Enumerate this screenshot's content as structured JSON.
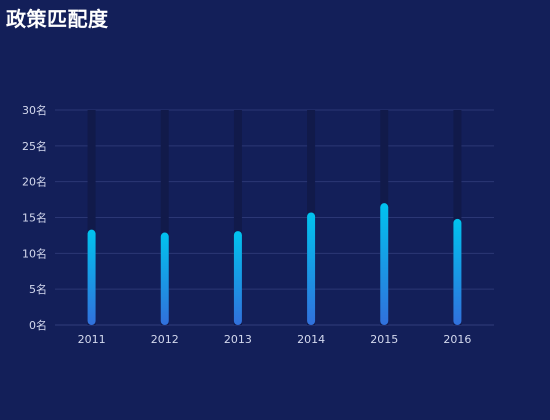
{
  "panel": {
    "title": "政策匹配度"
  },
  "colors": {
    "background": "#131f59",
    "track": "#111a4a",
    "bar_top": "#00c3ee",
    "bar_bottom": "#3170dc",
    "grid": "#2b3775",
    "axis_text": "#d4d9ee"
  },
  "chart_data": {
    "type": "bar",
    "categories": [
      "2011",
      "2012",
      "2013",
      "2014",
      "2015",
      "2016"
    ],
    "values": [
      13.3,
      12.9,
      13.1,
      15.7,
      17.0,
      14.8
    ],
    "ylim": [
      0,
      30
    ],
    "yticks": [
      0,
      5,
      10,
      15,
      20,
      25,
      30
    ],
    "ytick_labels": [
      "0名",
      "5名",
      "10名",
      "15名",
      "20名",
      "25名",
      "30名"
    ],
    "grid": true,
    "title": "",
    "xlabel": "",
    "ylabel": ""
  }
}
